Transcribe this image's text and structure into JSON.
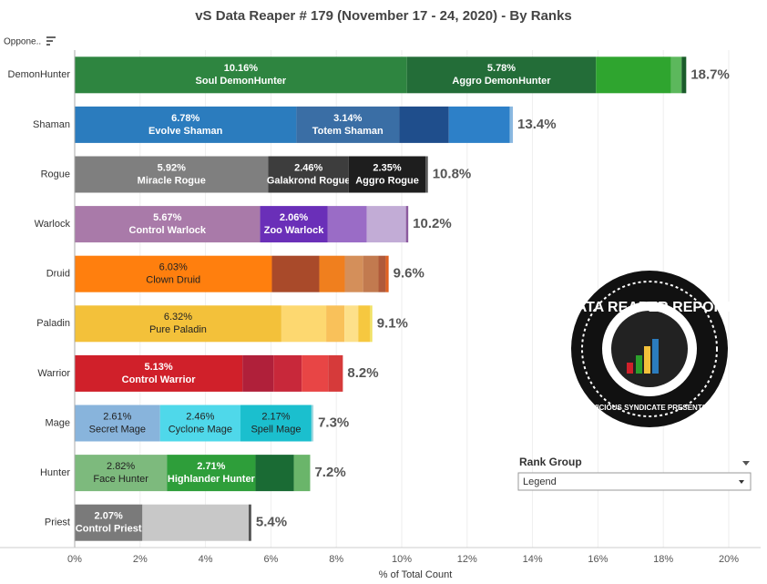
{
  "chart_data": {
    "type": "stacked-bar-horizontal",
    "title": "vS Data Reaper #  179 (November 17 - 24, 2020) - By Ranks",
    "header": "Oppone..",
    "x_label": "% of Total Count",
    "xlim": [
      0,
      20
    ],
    "xticks": [
      {
        "value": 0,
        "label": "0%"
      },
      {
        "value": 2,
        "label": "2%"
      },
      {
        "value": 4,
        "label": "4%"
      },
      {
        "value": 6,
        "label": "6%"
      },
      {
        "value": 8,
        "label": "8%"
      },
      {
        "value": 10,
        "label": "10%"
      },
      {
        "value": 12,
        "label": "12%"
      },
      {
        "value": 14,
        "label": "14%"
      },
      {
        "value": 16,
        "label": "16%"
      },
      {
        "value": 18,
        "label": "18%"
      },
      {
        "value": 20,
        "label": "20%"
      }
    ],
    "grid": true,
    "rows": [
      {
        "category": "DemonHunter",
        "total": 18.7,
        "total_label": "18.7%",
        "segments": [
          {
            "name": "Soul DemonHunter",
            "value": 10.16,
            "value_label": "10.16%",
            "color": "#2e8540"
          },
          {
            "name": "Aggro DemonHunter",
            "value": 5.78,
            "value_label": "5.78%",
            "color": "#236d38"
          },
          {
            "value": 2.29,
            "color": "#2fa52f"
          },
          {
            "value": 0.33,
            "color": "#5cb85c"
          },
          {
            "value": 0.14,
            "color": "#1a5c2a"
          }
        ]
      },
      {
        "category": "Shaman",
        "total": 13.4,
        "total_label": "13.4%",
        "segments": [
          {
            "name": "Evolve Shaman",
            "value": 6.78,
            "value_label": "6.78%",
            "color": "#2b7cbe"
          },
          {
            "name": "Totem Shaman",
            "value": 3.14,
            "value_label": "3.14%",
            "color": "#3a6ea5"
          },
          {
            "value": 1.52,
            "color": "#1f4e8c"
          },
          {
            "value": 1.86,
            "color": "#2d80c8"
          },
          {
            "value": 0.1,
            "color": "#8ab8e0"
          }
        ]
      },
      {
        "category": "Rogue",
        "total": 10.8,
        "total_label": "10.8%",
        "segments": [
          {
            "name": "Miracle Rogue",
            "value": 5.92,
            "value_label": "5.92%",
            "color": "#7f7f7f"
          },
          {
            "name": "Galakrond Rogue",
            "value": 2.46,
            "value_label": "2.46%",
            "color": "#3d3d3d"
          },
          {
            "name": "Aggro Rogue",
            "value": 2.35,
            "value_label": "2.35%",
            "color": "#1e1e1e"
          },
          {
            "value": 0.07,
            "color": "#555555"
          }
        ]
      },
      {
        "category": "Warlock",
        "total": 10.2,
        "total_label": "10.2%",
        "segments": [
          {
            "name": "Control Warlock",
            "value": 5.67,
            "value_label": "5.67%",
            "color": "#a97aa9"
          },
          {
            "name": "Zoo Warlock",
            "value": 2.06,
            "value_label": "2.06%",
            "color": "#6a2fb8"
          },
          {
            "value": 1.2,
            "color": "#9a6cc6"
          },
          {
            "value": 1.2,
            "color": "#c2acd6"
          },
          {
            "value": 0.07,
            "color": "#8b5a9e"
          }
        ]
      },
      {
        "category": "Druid",
        "total": 9.6,
        "total_label": "9.6%",
        "segments": [
          {
            "name": "Clown Druid",
            "value": 6.03,
            "value_label": "6.03%",
            "color": "#ff7f0e"
          },
          {
            "value": 1.45,
            "color": "#a94a2a"
          },
          {
            "value": 0.78,
            "color": "#f07f1e"
          },
          {
            "value": 0.56,
            "color": "#d48f5a"
          },
          {
            "value": 0.47,
            "color": "#c27a4f"
          },
          {
            "value": 0.22,
            "color": "#b05a3a"
          },
          {
            "value": 0.09,
            "color": "#e06020"
          }
        ]
      },
      {
        "category": "Paladin",
        "total": 9.1,
        "total_label": "9.1%",
        "segments": [
          {
            "name": "Pure Paladin",
            "value": 6.32,
            "value_label": "6.32%",
            "color": "#f3c13a"
          },
          {
            "value": 1.37,
            "color": "#fdd870"
          },
          {
            "value": 0.56,
            "color": "#f9c15a"
          },
          {
            "value": 0.42,
            "color": "#fde08a"
          },
          {
            "value": 0.36,
            "color": "#f6c840"
          },
          {
            "value": 0.07,
            "color": "#f0e060"
          }
        ]
      },
      {
        "category": "Warrior",
        "total": 8.2,
        "total_label": "8.2%",
        "segments": [
          {
            "name": "Control Warrior",
            "value": 5.13,
            "value_label": "5.13%",
            "color": "#d0202a"
          },
          {
            "value": 0.95,
            "color": "#b0203a"
          },
          {
            "value": 0.86,
            "color": "#c8283a"
          },
          {
            "value": 0.81,
            "color": "#e84545"
          },
          {
            "value": 0.45,
            "color": "#d63a3a"
          }
        ]
      },
      {
        "category": "Mage",
        "total": 7.3,
        "total_label": "7.3%",
        "segments": [
          {
            "name": "Secret Mage",
            "value": 2.61,
            "value_label": "2.61%",
            "color": "#88b4dc"
          },
          {
            "name": "Cyclone Mage",
            "value": 2.46,
            "value_label": "2.46%",
            "color": "#4fd8ea"
          },
          {
            "name": "Spell Mage",
            "value": 2.17,
            "value_label": "2.17%",
            "color": "#1bbfce"
          },
          {
            "value": 0.06,
            "color": "#a0d8e0"
          }
        ]
      },
      {
        "category": "Hunter",
        "total": 7.2,
        "total_label": "7.2%",
        "segments": [
          {
            "name": "Face Hunter",
            "value": 2.82,
            "value_label": "2.82%",
            "color": "#7dba7d"
          },
          {
            "name": "Highlander Hunter",
            "value": 2.71,
            "value_label": "2.71%",
            "color": "#2e9e3a"
          },
          {
            "value": 1.17,
            "color": "#1a6b34"
          },
          {
            "value": 0.5,
            "color": "#6ab56a"
          }
        ]
      },
      {
        "category": "Priest",
        "total": 5.4,
        "total_label": "5.4%",
        "segments": [
          {
            "name": "Control Priest",
            "value": 2.07,
            "value_label": "2.07%",
            "color": "#7a7a7a"
          },
          {
            "value": 3.25,
            "color": "#c8c8c8"
          },
          {
            "value": 0.08,
            "color": "#555555"
          }
        ]
      }
    ],
    "filter": {
      "title": "Rank Group",
      "selected": "Legend"
    },
    "logo": {
      "title": "DATA REAPER REPORT",
      "subtitle": "VICIOUS SYNDICATE PRESENTS"
    }
  }
}
